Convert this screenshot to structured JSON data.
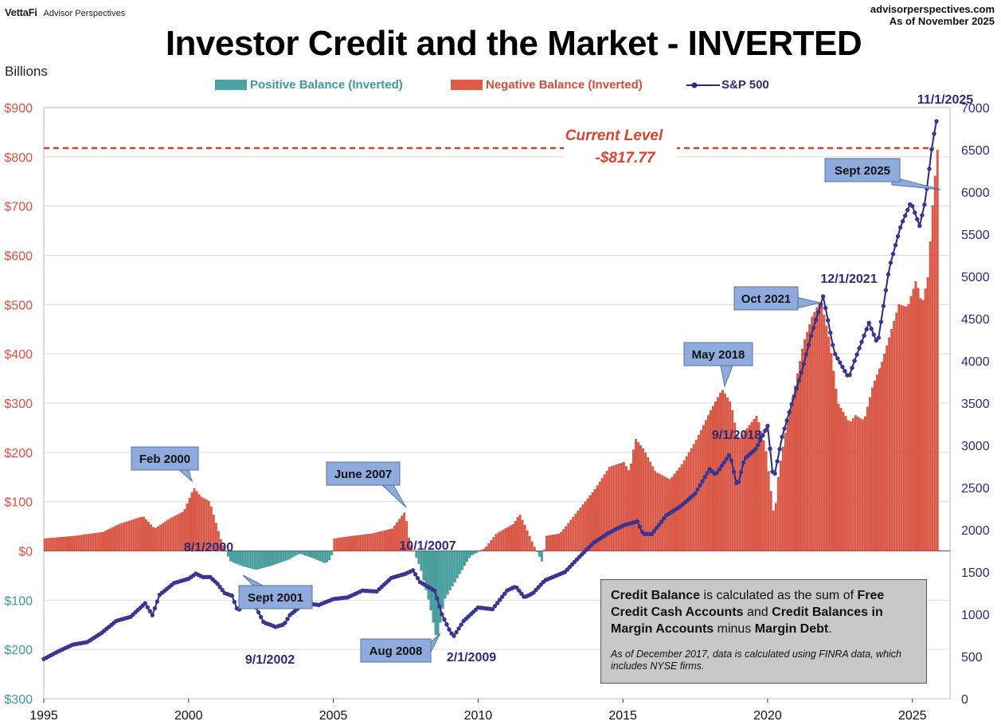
{
  "header": {
    "brand": "VettaFi",
    "brand_sub": "Advisor Perspectives",
    "site": "advisorperspectives.com",
    "asof": "As of November 2025"
  },
  "chart_data": {
    "type": "bar+line",
    "title": "Investor Credit and the Market - INVERTED",
    "ylabel": "Billions",
    "ylim_left": [
      -300,
      900
    ],
    "ylim_right": [
      0,
      7000
    ],
    "xlim": [
      1995,
      2026.3
    ],
    "left_ticks": [
      {
        "v": 900,
        "label": "$900"
      },
      {
        "v": 800,
        "label": "$800"
      },
      {
        "v": 700,
        "label": "$700"
      },
      {
        "v": 600,
        "label": "$600"
      },
      {
        "v": 500,
        "label": "$500"
      },
      {
        "v": 400,
        "label": "$400"
      },
      {
        "v": 300,
        "label": "$300"
      },
      {
        "v": 200,
        "label": "$200"
      },
      {
        "v": 100,
        "label": "$100"
      },
      {
        "v": 0,
        "label": "$0"
      },
      {
        "v": -100,
        "label": "$100"
      },
      {
        "v": -200,
        "label": "$200"
      },
      {
        "v": -300,
        "label": "$300"
      }
    ],
    "right_ticks": [
      {
        "v": 7000,
        "label": "7000"
      },
      {
        "v": 6500,
        "label": "6500"
      },
      {
        "v": 6000,
        "label": "6000"
      },
      {
        "v": 5500,
        "label": "5500"
      },
      {
        "v": 5000,
        "label": "5000"
      },
      {
        "v": 4500,
        "label": "4500"
      },
      {
        "v": 4000,
        "label": "4000"
      },
      {
        "v": 3500,
        "label": "3500"
      },
      {
        "v": 3000,
        "label": "3000"
      },
      {
        "v": 2500,
        "label": "2500"
      },
      {
        "v": 2000,
        "label": "2000"
      },
      {
        "v": 1500,
        "label": "1500"
      },
      {
        "v": 1000,
        "label": "1000"
      },
      {
        "v": 500,
        "label": "500"
      },
      {
        "v": 0,
        "label": "0"
      }
    ],
    "x_ticks": [
      {
        "v": 1995,
        "label": "1995"
      },
      {
        "v": 2000,
        "label": "2000"
      },
      {
        "v": 2005,
        "label": "2005"
      },
      {
        "v": 2010,
        "label": "2010"
      },
      {
        "v": 2015,
        "label": "2015"
      },
      {
        "v": 2020,
        "label": "2020"
      },
      {
        "v": 2025,
        "label": "2025"
      }
    ],
    "legend": [
      {
        "name": "Positive Balance (Inverted)",
        "color": "#4aa3a3"
      },
      {
        "name": "Negative Balance (Inverted)",
        "color": "#e05a48"
      },
      {
        "name": "S&P 500",
        "color": "#2e2a7a"
      }
    ],
    "credit_balance_anchors": [
      [
        1995.0,
        25
      ],
      [
        1996.0,
        30
      ],
      [
        1997.0,
        38
      ],
      [
        1997.6,
        55
      ],
      [
        1998.4,
        70
      ],
      [
        1998.8,
        45
      ],
      [
        1999.3,
        65
      ],
      [
        1999.8,
        80
      ],
      [
        2000.15,
        128
      ],
      [
        2000.4,
        110
      ],
      [
        2000.7,
        100
      ],
      [
        2000.9,
        60
      ],
      [
        2001.1,
        20
      ],
      [
        2001.4,
        -20
      ],
      [
        2001.8,
        -30
      ],
      [
        2002.3,
        -38
      ],
      [
        2002.8,
        -30
      ],
      [
        2003.4,
        -18
      ],
      [
        2003.8,
        -5
      ],
      [
        2004.3,
        -15
      ],
      [
        2004.7,
        -25
      ],
      [
        2004.9,
        -15
      ],
      [
        2005.0,
        25
      ],
      [
        2005.6,
        30
      ],
      [
        2006.3,
        35
      ],
      [
        2007.0,
        45
      ],
      [
        2007.45,
        80
      ],
      [
        2007.6,
        20
      ],
      [
        2007.75,
        0
      ],
      [
        2008.0,
        -40
      ],
      [
        2008.3,
        -110
      ],
      [
        2008.55,
        -185
      ],
      [
        2008.8,
        -100
      ],
      [
        2009.2,
        -60
      ],
      [
        2009.7,
        -10
      ],
      [
        2010.2,
        5
      ],
      [
        2010.6,
        35
      ],
      [
        2011.2,
        55
      ],
      [
        2011.4,
        75
      ],
      [
        2011.6,
        50
      ],
      [
        2011.9,
        10
      ],
      [
        2012.2,
        -25
      ],
      [
        2012.3,
        30
      ],
      [
        2012.8,
        35
      ],
      [
        2013.2,
        65
      ],
      [
        2013.6,
        95
      ],
      [
        2014.0,
        125
      ],
      [
        2014.5,
        170
      ],
      [
        2015.0,
        180
      ],
      [
        2015.2,
        160
      ],
      [
        2015.4,
        228
      ],
      [
        2015.7,
        205
      ],
      [
        2016.1,
        160
      ],
      [
        2016.6,
        145
      ],
      [
        2017.0,
        175
      ],
      [
        2017.5,
        225
      ],
      [
        2018.0,
        285
      ],
      [
        2018.4,
        328
      ],
      [
        2018.7,
        300
      ],
      [
        2018.95,
        225
      ],
      [
        2019.2,
        245
      ],
      [
        2019.6,
        275
      ],
      [
        2019.9,
        210
      ],
      [
        2020.2,
        65
      ],
      [
        2020.35,
        160
      ],
      [
        2020.6,
        245
      ],
      [
        2020.9,
        330
      ],
      [
        2021.2,
        420
      ],
      [
        2021.5,
        475
      ],
      [
        2021.8,
        510
      ],
      [
        2022.1,
        430
      ],
      [
        2022.4,
        300
      ],
      [
        2022.8,
        260
      ],
      [
        2023.0,
        275
      ],
      [
        2023.3,
        265
      ],
      [
        2023.6,
        335
      ],
      [
        2023.9,
        380
      ],
      [
        2024.2,
        440
      ],
      [
        2024.5,
        500
      ],
      [
        2024.8,
        495
      ],
      [
        2025.1,
        550
      ],
      [
        2025.3,
        500
      ],
      [
        2025.5,
        555
      ],
      [
        2025.7,
        730
      ],
      [
        2025.84,
        818
      ]
    ],
    "sp500_anchors": [
      [
        1995.0,
        470
      ],
      [
        1995.5,
        560
      ],
      [
        1996.0,
        640
      ],
      [
        1996.5,
        670
      ],
      [
        1997.0,
        780
      ],
      [
        1997.5,
        920
      ],
      [
        1998.0,
        970
      ],
      [
        1998.5,
        1130
      ],
      [
        1998.75,
        990
      ],
      [
        1999.0,
        1230
      ],
      [
        1999.5,
        1370
      ],
      [
        2000.0,
        1420
      ],
      [
        2000.25,
        1480
      ],
      [
        2000.5,
        1440
      ],
      [
        2000.75,
        1440
      ],
      [
        2001.0,
        1360
      ],
      [
        2001.25,
        1250
      ],
      [
        2001.5,
        1220
      ],
      [
        2001.7,
        1040
      ],
      [
        2002.0,
        1140
      ],
      [
        2002.3,
        1100
      ],
      [
        2002.6,
        900
      ],
      [
        2002.8,
        880
      ],
      [
        2003.0,
        850
      ],
      [
        2003.3,
        880
      ],
      [
        2003.5,
        990
      ],
      [
        2004.0,
        1130
      ],
      [
        2004.5,
        1110
      ],
      [
        2005.0,
        1180
      ],
      [
        2005.5,
        1200
      ],
      [
        2006.0,
        1280
      ],
      [
        2006.5,
        1270
      ],
      [
        2007.0,
        1430
      ],
      [
        2007.5,
        1480
      ],
      [
        2007.75,
        1520
      ],
      [
        2008.0,
        1380
      ],
      [
        2008.5,
        1280
      ],
      [
        2008.75,
        1000
      ],
      [
        2009.0,
        820
      ],
      [
        2009.15,
        735
      ],
      [
        2009.5,
        920
      ],
      [
        2010.0,
        1080
      ],
      [
        2010.5,
        1060
      ],
      [
        2011.0,
        1280
      ],
      [
        2011.3,
        1330
      ],
      [
        2011.6,
        1200
      ],
      [
        2011.9,
        1250
      ],
      [
        2012.3,
        1400
      ],
      [
        2013.0,
        1500
      ],
      [
        2013.5,
        1680
      ],
      [
        2014.0,
        1850
      ],
      [
        2014.5,
        1960
      ],
      [
        2015.0,
        2050
      ],
      [
        2015.5,
        2100
      ],
      [
        2015.7,
        1950
      ],
      [
        2016.0,
        1950
      ],
      [
        2016.5,
        2170
      ],
      [
        2017.0,
        2280
      ],
      [
        2017.5,
        2430
      ],
      [
        2018.0,
        2720
      ],
      [
        2018.2,
        2650
      ],
      [
        2018.7,
        2900
      ],
      [
        2018.95,
        2500
      ],
      [
        2019.2,
        2840
      ],
      [
        2019.6,
        2960
      ],
      [
        2020.0,
        3230
      ],
      [
        2020.2,
        2580
      ],
      [
        2020.5,
        3100
      ],
      [
        2020.8,
        3450
      ],
      [
        2021.2,
        3900
      ],
      [
        2021.5,
        4300
      ],
      [
        2021.92,
        4767
      ],
      [
        2022.3,
        4100
      ],
      [
        2022.8,
        3800
      ],
      [
        2023.0,
        4000
      ],
      [
        2023.5,
        4450
      ],
      [
        2023.8,
        4200
      ],
      [
        2024.2,
        5100
      ],
      [
        2024.6,
        5600
      ],
      [
        2024.95,
        5880
      ],
      [
        2025.25,
        5600
      ],
      [
        2025.45,
        5900
      ],
      [
        2025.7,
        6600
      ],
      [
        2025.84,
        6850
      ]
    ],
    "current_level": {
      "value": 817.77,
      "label1": "Current Level",
      "label2": "-$817.77"
    },
    "annotations": {
      "feb2000": "Feb 2000",
      "june2007": "June 2007",
      "may2018": "May 2018",
      "oct2021": "Oct 2021",
      "sept2025": "Sept 2025",
      "sept2001": "Sept 2001",
      "aug2008": "Aug 2008",
      "d_8_1_2000": "8/1/2000",
      "d_10_1_2007": "10/1/2007",
      "d_9_1_2018": "9/1/2018",
      "d_12_1_2021": "12/1/2021",
      "d_11_1_2025": "11/1/2025",
      "d_9_1_2002": "9/1/2002",
      "d_2_1_2009": "2/1/2009"
    }
  },
  "note": {
    "p1": "Credit Balance",
    "p2": " is calculated as the sum of ",
    "p3": "Free Credit Cash Accounts",
    "p4": " and ",
    "p5": "Credit Balances in Margin Accounts",
    "p6": " minus ",
    "p7": "Margin Debt",
    "p8": ".",
    "small": "As of December 2017, data is calculated using FINRA data, which includes NYSE firms."
  }
}
